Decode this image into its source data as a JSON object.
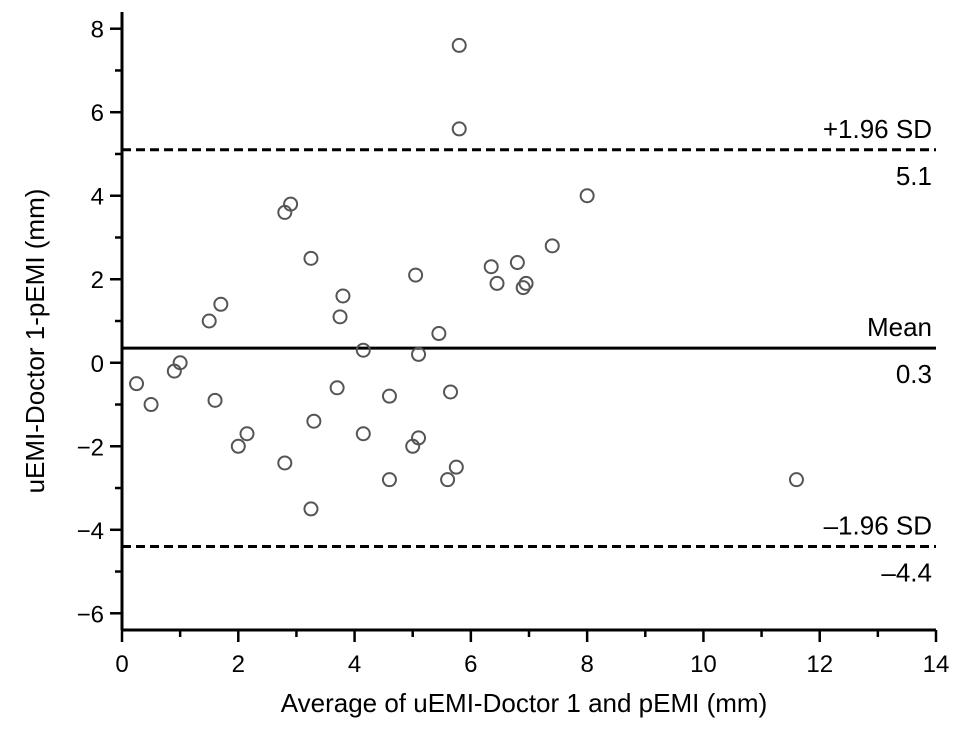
{
  "chart_data": {
    "type": "scatter",
    "xlabel": "Average of uEMI-Doctor 1 and pEMI (mm)",
    "ylabel": "uEMI-Doctor 1-pEMI (mm)",
    "xlim": [
      0,
      14
    ],
    "ylim": [
      -6.4,
      8.4
    ],
    "xticks": [
      0,
      2,
      4,
      6,
      8,
      10,
      12,
      14
    ],
    "yticks": [
      -6,
      -4,
      -2,
      0,
      2,
      4,
      6,
      8
    ],
    "grid": false,
    "reference_lines": [
      {
        "name": "+1.96 SD",
        "value_label": "5.1",
        "y": 5.1,
        "style": "dashed"
      },
      {
        "name": "Mean",
        "value_label": "0.3",
        "y": 0.35,
        "style": "solid"
      },
      {
        "name": "–1.96 SD",
        "value_label": "–4.4",
        "y": -4.4,
        "style": "dashed"
      }
    ],
    "points": [
      {
        "x": 0.25,
        "y": -0.5
      },
      {
        "x": 0.5,
        "y": -1.0
      },
      {
        "x": 0.9,
        "y": -0.2
      },
      {
        "x": 1.0,
        "y": 0.0
      },
      {
        "x": 1.5,
        "y": 1.0
      },
      {
        "x": 1.6,
        "y": -0.9
      },
      {
        "x": 1.7,
        "y": 1.4
      },
      {
        "x": 2.0,
        "y": -2.0
      },
      {
        "x": 2.15,
        "y": -1.7
      },
      {
        "x": 2.8,
        "y": 3.6
      },
      {
        "x": 2.9,
        "y": 3.8
      },
      {
        "x": 2.8,
        "y": -2.4
      },
      {
        "x": 3.25,
        "y": 2.5
      },
      {
        "x": 3.3,
        "y": -1.4
      },
      {
        "x": 3.25,
        "y": -3.5
      },
      {
        "x": 3.8,
        "y": 1.6
      },
      {
        "x": 3.75,
        "y": 1.1
      },
      {
        "x": 3.7,
        "y": -0.6
      },
      {
        "x": 4.15,
        "y": 0.3
      },
      {
        "x": 4.15,
        "y": -1.7
      },
      {
        "x": 4.6,
        "y": -0.8
      },
      {
        "x": 4.6,
        "y": -2.8
      },
      {
        "x": 5.05,
        "y": 2.1
      },
      {
        "x": 5.1,
        "y": 0.2
      },
      {
        "x": 5.1,
        "y": -1.8
      },
      {
        "x": 5.0,
        "y": -2.0
      },
      {
        "x": 5.45,
        "y": 0.7
      },
      {
        "x": 5.65,
        "y": -0.7
      },
      {
        "x": 5.6,
        "y": -2.8
      },
      {
        "x": 5.75,
        "y": -2.5
      },
      {
        "x": 5.8,
        "y": 7.6
      },
      {
        "x": 5.8,
        "y": 5.6
      },
      {
        "x": 6.35,
        "y": 2.3
      },
      {
        "x": 6.45,
        "y": 1.9
      },
      {
        "x": 6.8,
        "y": 2.4
      },
      {
        "x": 6.9,
        "y": 1.8
      },
      {
        "x": 6.95,
        "y": 1.9
      },
      {
        "x": 7.4,
        "y": 2.8
      },
      {
        "x": 8.0,
        "y": 4.0
      },
      {
        "x": 11.6,
        "y": -2.8
      }
    ]
  }
}
